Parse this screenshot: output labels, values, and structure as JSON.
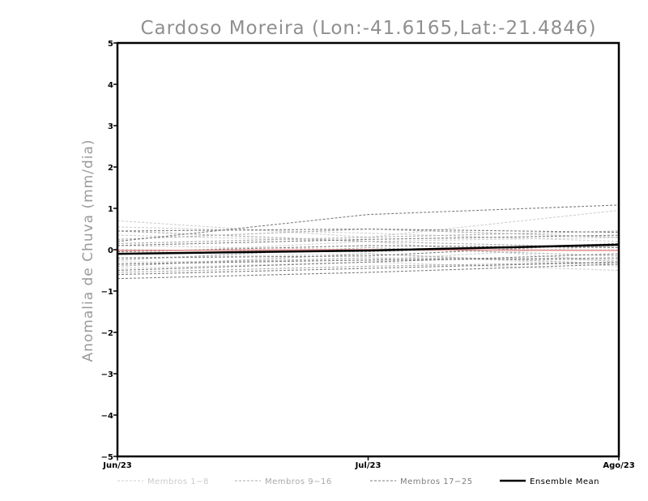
{
  "chart_data": {
    "type": "line",
    "title": "Cardoso Moreira (Lon:-41.6165,Lat:-21.4846)",
    "xlabel": "",
    "ylabel": "Anomalia de Chuva (mm/dia)",
    "categories": [
      "Jun/23",
      "Jul/23",
      "Ago/23"
    ],
    "ylim": [
      -5,
      5
    ],
    "yticks": [
      5,
      4,
      3,
      2,
      1,
      0,
      -1,
      -2,
      -3,
      -4,
      -5
    ],
    "legend_position": "bottom",
    "groups": [
      {
        "name": "Membros 1-8",
        "color": "#cfcfcf",
        "dash": "3,2"
      },
      {
        "name": "Membros 9-16",
        "color": "#acacac",
        "dash": "3,2"
      },
      {
        "name": "Membros 17-25",
        "color": "#7e7e7e",
        "dash": "3,2"
      },
      {
        "name": "Ensemble Mean",
        "color": "#000000",
        "dash": ""
      }
    ],
    "series": [
      {
        "group": 0,
        "values": [
          0.7,
          0.3,
          0.95
        ]
      },
      {
        "group": 0,
        "values": [
          0.35,
          0.2,
          0.3
        ]
      },
      {
        "group": 0,
        "values": [
          0.1,
          0.0,
          0.0
        ]
      },
      {
        "group": 0,
        "values": [
          -0.2,
          -0.1,
          -0.4
        ]
      },
      {
        "group": 0,
        "values": [
          -0.45,
          -0.3,
          -0.5
        ]
      },
      {
        "group": 0,
        "values": [
          0.55,
          0.4,
          0.2
        ]
      },
      {
        "group": 0,
        "values": [
          -0.3,
          -0.25,
          0.1
        ]
      },
      {
        "group": 0,
        "values": [
          -0.1,
          0.2,
          -0.3
        ]
      },
      {
        "group": 1,
        "values": [
          0.25,
          0.5,
          0.3
        ]
      },
      {
        "group": 1,
        "values": [
          -0.35,
          -0.2,
          -0.25
        ]
      },
      {
        "group": 1,
        "values": [
          0.0,
          -0.05,
          0.15
        ]
      },
      {
        "group": 1,
        "values": [
          -0.55,
          -0.4,
          -0.3
        ]
      },
      {
        "group": 1,
        "values": [
          0.15,
          0.3,
          0.45
        ]
      },
      {
        "group": 1,
        "values": [
          -0.25,
          0.05,
          -0.15
        ]
      },
      {
        "group": 1,
        "values": [
          0.45,
          0.2,
          0.05
        ]
      },
      {
        "group": 1,
        "values": [
          -0.4,
          -0.1,
          -0.35
        ]
      },
      {
        "group": 2,
        "values": [
          0.2,
          0.85,
          1.08
        ]
      },
      {
        "group": 2,
        "values": [
          0.45,
          0.5,
          0.42
        ]
      },
      {
        "group": 2,
        "values": [
          0.1,
          0.25,
          0.35
        ]
      },
      {
        "group": 2,
        "values": [
          -0.05,
          0.1,
          0.05
        ]
      },
      {
        "group": 2,
        "values": [
          -0.2,
          -0.15,
          0.15
        ]
      },
      {
        "group": 2,
        "values": [
          -0.35,
          -0.25,
          -0.2
        ]
      },
      {
        "group": 2,
        "values": [
          -0.5,
          -0.3,
          -0.1
        ]
      },
      {
        "group": 2,
        "values": [
          -0.6,
          -0.45,
          -0.3
        ]
      },
      {
        "group": 2,
        "values": [
          -0.7,
          -0.55,
          -0.35
        ]
      }
    ],
    "ensemble_mean": [
      -0.1,
      -0.02,
      0.12
    ],
    "observed": {
      "color": "#e8908f",
      "values": [
        -0.02,
        0.0,
        -0.02
      ]
    }
  }
}
